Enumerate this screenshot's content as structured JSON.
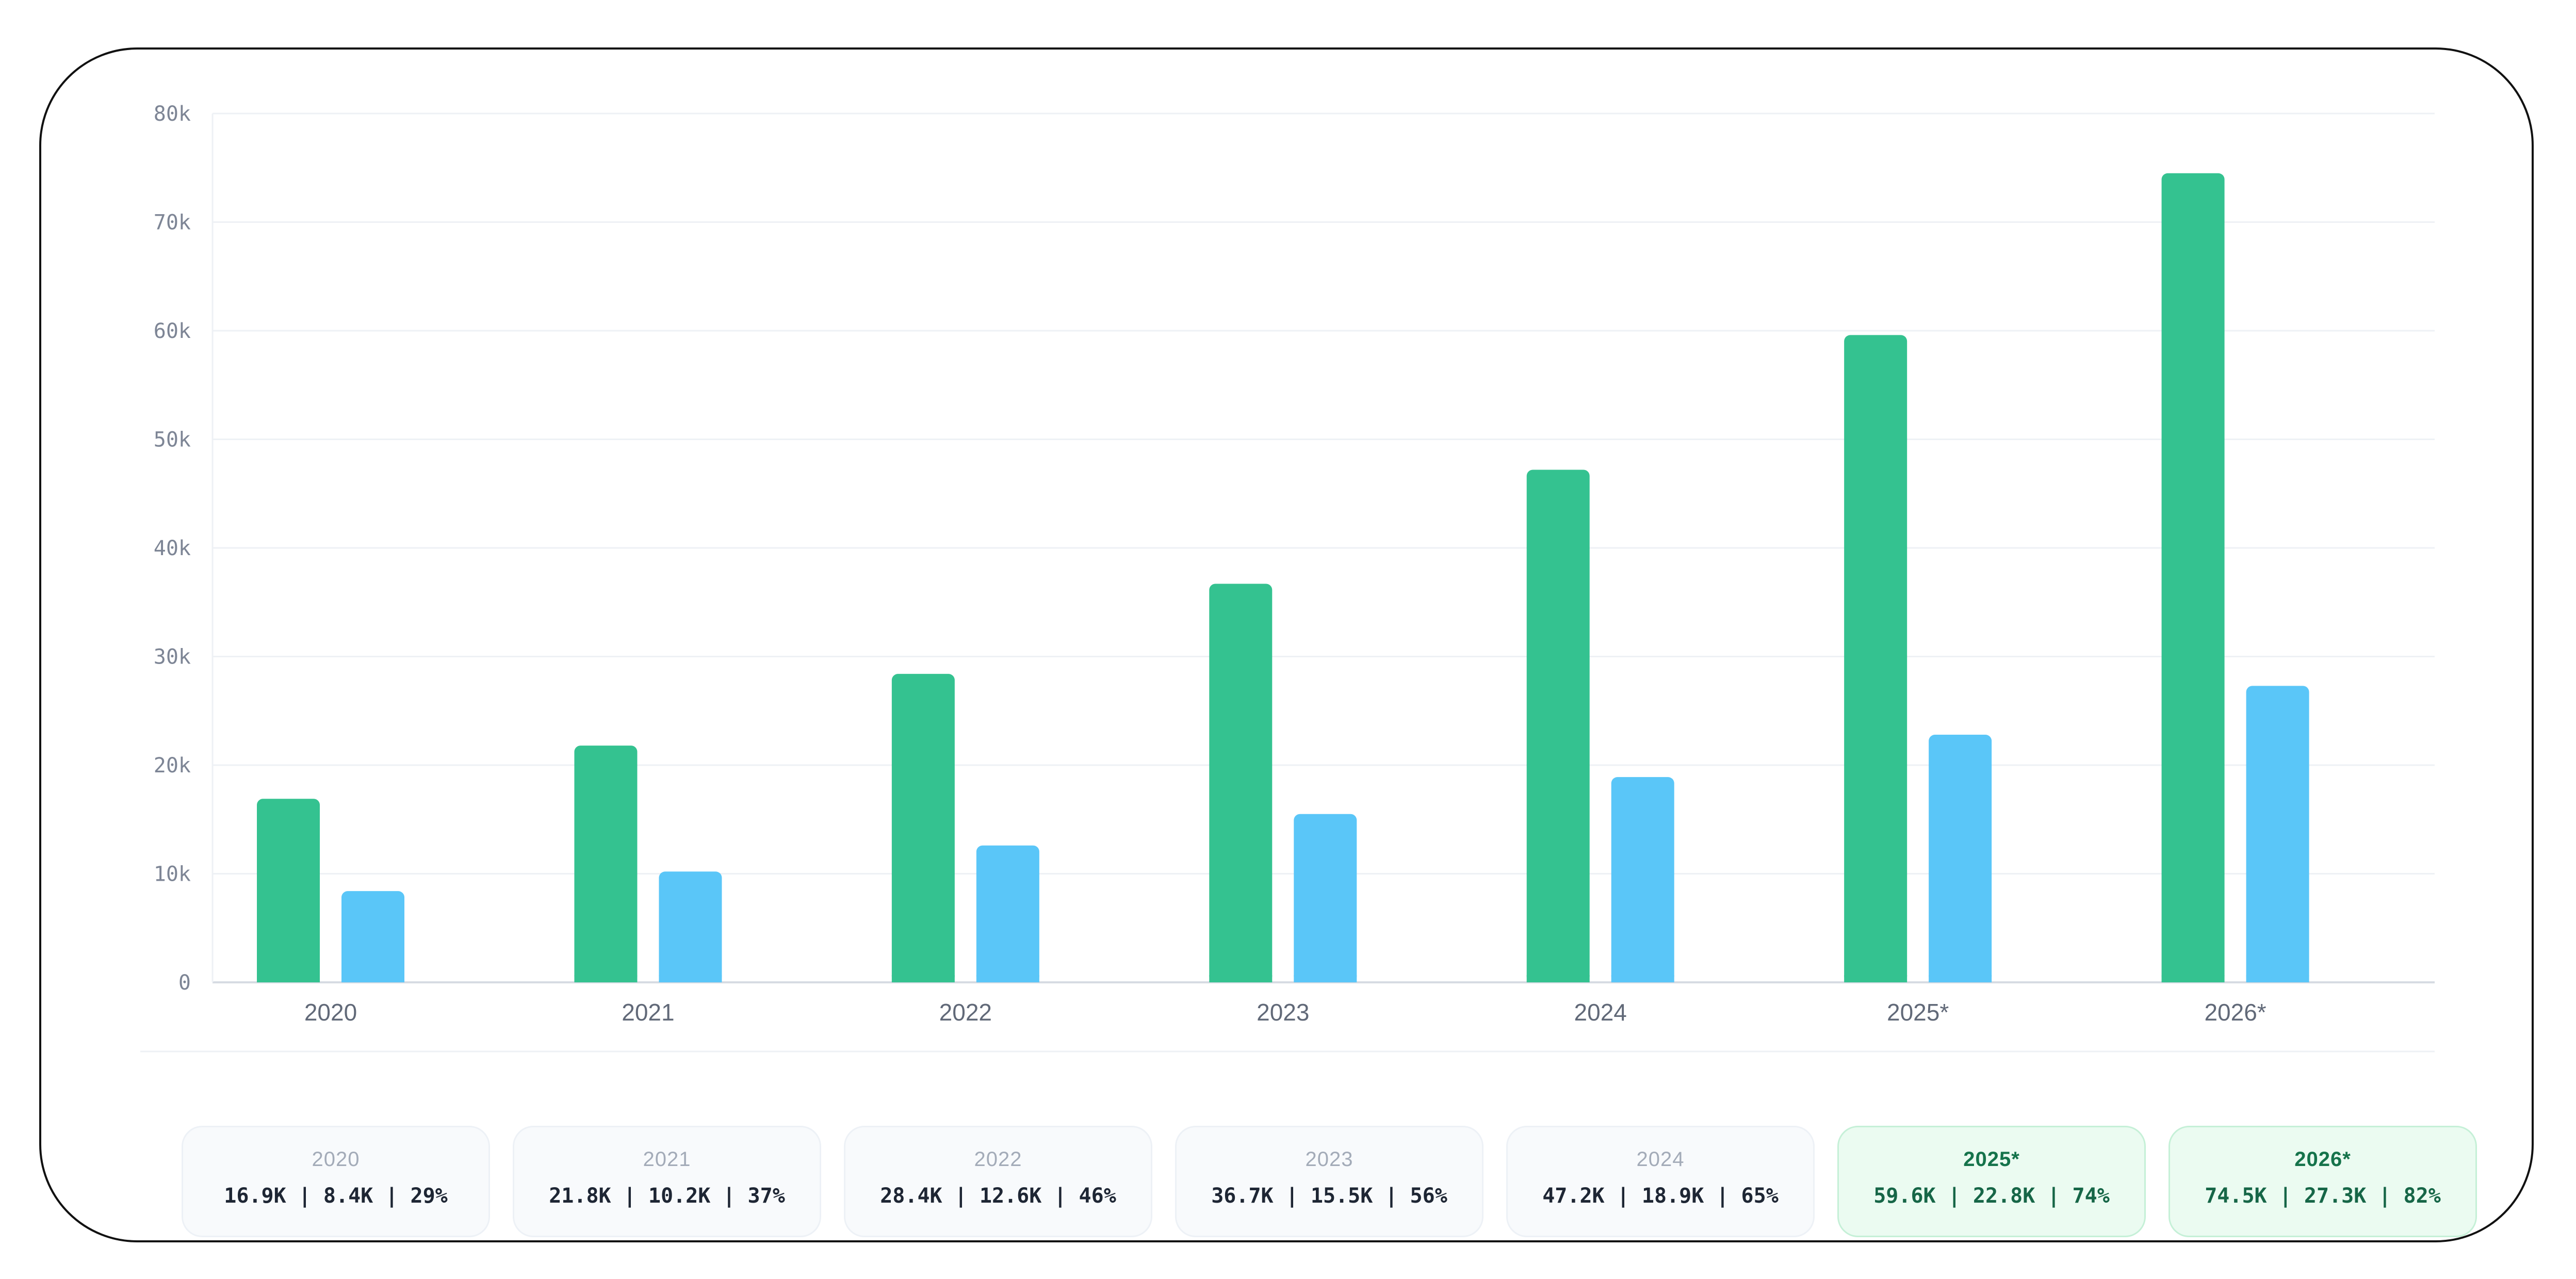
{
  "colors": {
    "series_1": "#34c290",
    "series_2": "#5ac6f8",
    "gridline": "#eef1f5",
    "axis": "#d6dbe2",
    "projected_card_bg": "#ebfbf1"
  },
  "chart_data": {
    "type": "bar",
    "categories": [
      "2020",
      "2021",
      "2022",
      "2023",
      "2024",
      "2025*",
      "2026*"
    ],
    "series": [
      {
        "values": [
          16.9,
          21.8,
          28.4,
          36.7,
          47.2,
          59.6,
          74.5
        ]
      },
      {
        "values": [
          8.4,
          10.2,
          12.6,
          15.5,
          18.9,
          22.8,
          27.3
        ]
      },
      {
        "values": [
          29,
          37,
          46,
          56,
          65,
          74,
          82
        ]
      }
    ],
    "value_unit": "k",
    "ylim": [
      0,
      80
    ],
    "yticks": [
      "0",
      "10k",
      "20k",
      "30k",
      "40k",
      "50k",
      "60k",
      "70k",
      "80k"
    ],
    "grid": true,
    "xlabel": "",
    "ylabel": ""
  },
  "summary_cards": [
    {
      "year": "2020",
      "stats": "16.9K | 8.4K | 29%",
      "projected": false
    },
    {
      "year": "2021",
      "stats": "21.8K | 10.2K | 37%",
      "projected": false
    },
    {
      "year": "2022",
      "stats": "28.4K | 12.6K | 46%",
      "projected": false
    },
    {
      "year": "2023",
      "stats": "36.7K | 15.5K | 56%",
      "projected": false
    },
    {
      "year": "2024",
      "stats": "47.2K | 18.9K | 65%",
      "projected": false
    },
    {
      "year": "2025*",
      "stats": "59.6K | 22.8K | 74%",
      "projected": true
    },
    {
      "year": "2026*",
      "stats": "74.5K | 27.3K | 82%",
      "projected": true
    }
  ]
}
